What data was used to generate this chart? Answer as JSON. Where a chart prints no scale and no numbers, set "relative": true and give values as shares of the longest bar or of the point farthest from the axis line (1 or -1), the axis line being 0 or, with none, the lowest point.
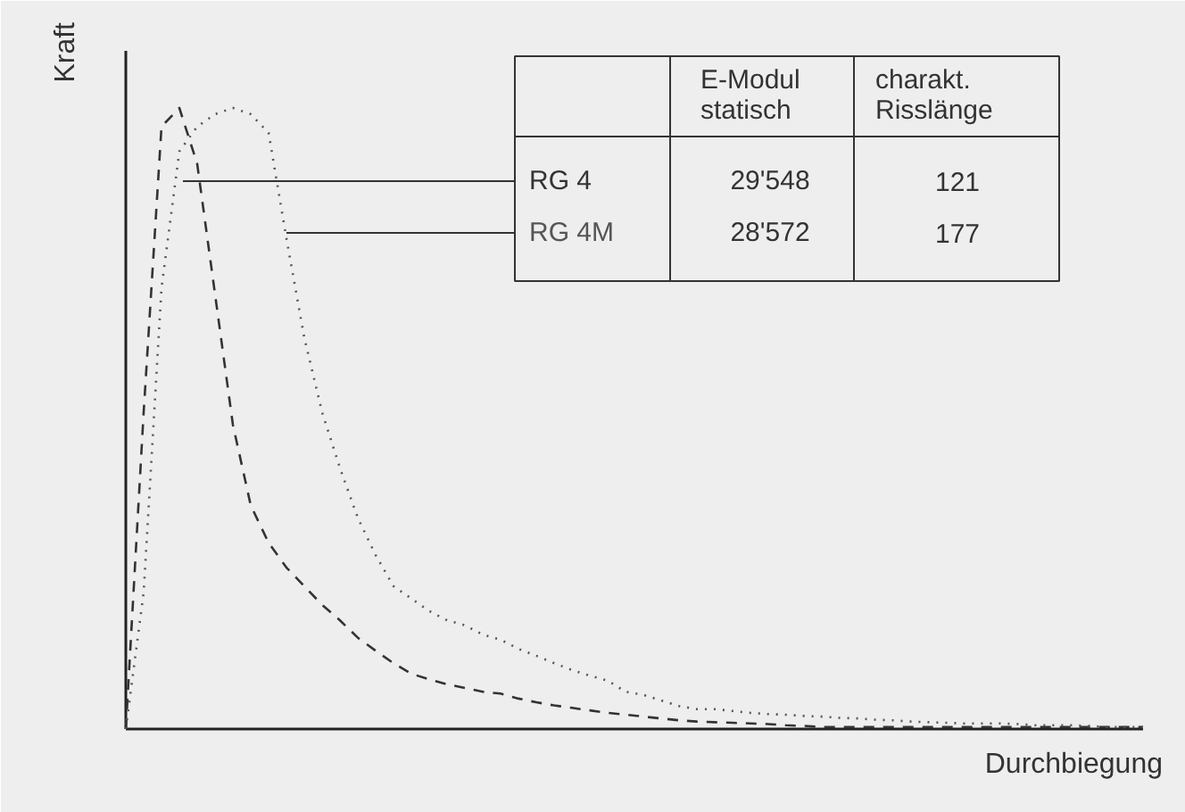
{
  "chart_data": {
    "type": "line",
    "relative": true,
    "xlabel": "Durchbiegung",
    "ylabel": "Kraft",
    "categories": [
      null,
      null,
      null,
      null,
      null,
      null,
      null,
      null,
      null,
      null,
      null,
      null,
      null,
      null,
      null,
      null,
      null,
      null,
      null,
      null,
      null,
      null,
      null,
      null,
      null,
      null,
      null,
      null,
      null,
      null,
      null,
      null,
      null,
      null,
      null,
      null,
      null,
      null,
      null,
      null,
      null,
      null,
      null,
      null,
      null,
      null,
      null,
      null,
      null,
      null,
      null,
      null,
      null,
      null,
      null,
      null,
      null,
      null
    ],
    "series": [
      {
        "name": "RG 4",
        "color": "#333333",
        "line_style": "dashed",
        "values": [
          0,
          0.51,
          0.97,
          1,
          0.91,
          0.7,
          0.49,
          0.36,
          0.3,
          0.26,
          0.23,
          0.2,
          0.175,
          0.147,
          0.126,
          0.106,
          0.089,
          0.08,
          0.072,
          0.066,
          0.06,
          0.057,
          0.049,
          0.043,
          0.038,
          0.034,
          0.03,
          0.026,
          0.023,
          0.02,
          0.017,
          0.014,
          0.012,
          0.011,
          0.01,
          0.009,
          0.008,
          0.006,
          0.005,
          0.003,
          0.003,
          0.003,
          0.003,
          0.003,
          0.003,
          0.003,
          0.003,
          0.003,
          0.003,
          0.003,
          0.003,
          0.003,
          0.003,
          0.003,
          0.003,
          0.003,
          0.003,
          0.003
        ]
      },
      {
        "name": "RG 4M",
        "color": "#555555",
        "line_style": "dotted",
        "values": [
          0,
          0.22,
          0.71,
          0.93,
          0.97,
          0.99,
          1,
          0.99,
          0.96,
          0.79,
          0.63,
          0.51,
          0.42,
          0.34,
          0.28,
          0.23,
          0.21,
          0.19,
          0.175,
          0.167,
          0.152,
          0.144,
          0.129,
          0.118,
          0.106,
          0.095,
          0.086,
          0.078,
          0.06,
          0.055,
          0.046,
          0.037,
          0.032,
          0.032,
          0.029,
          0.026,
          0.024,
          0.023,
          0.021,
          0.02,
          0.018,
          0.017,
          0.015,
          0.014,
          0.012,
          0.011,
          0.01,
          0.009,
          0.009,
          0.009,
          0.008,
          0.006,
          0.006,
          0.006,
          0.005,
          0.003,
          0.003,
          0.003
        ]
      }
    ],
    "annotations": [
      "E-Modul\nstatisch",
      "charakt.\nRisslänge",
      "29'548",
      "121",
      "28'572",
      "177"
    ]
  }
}
